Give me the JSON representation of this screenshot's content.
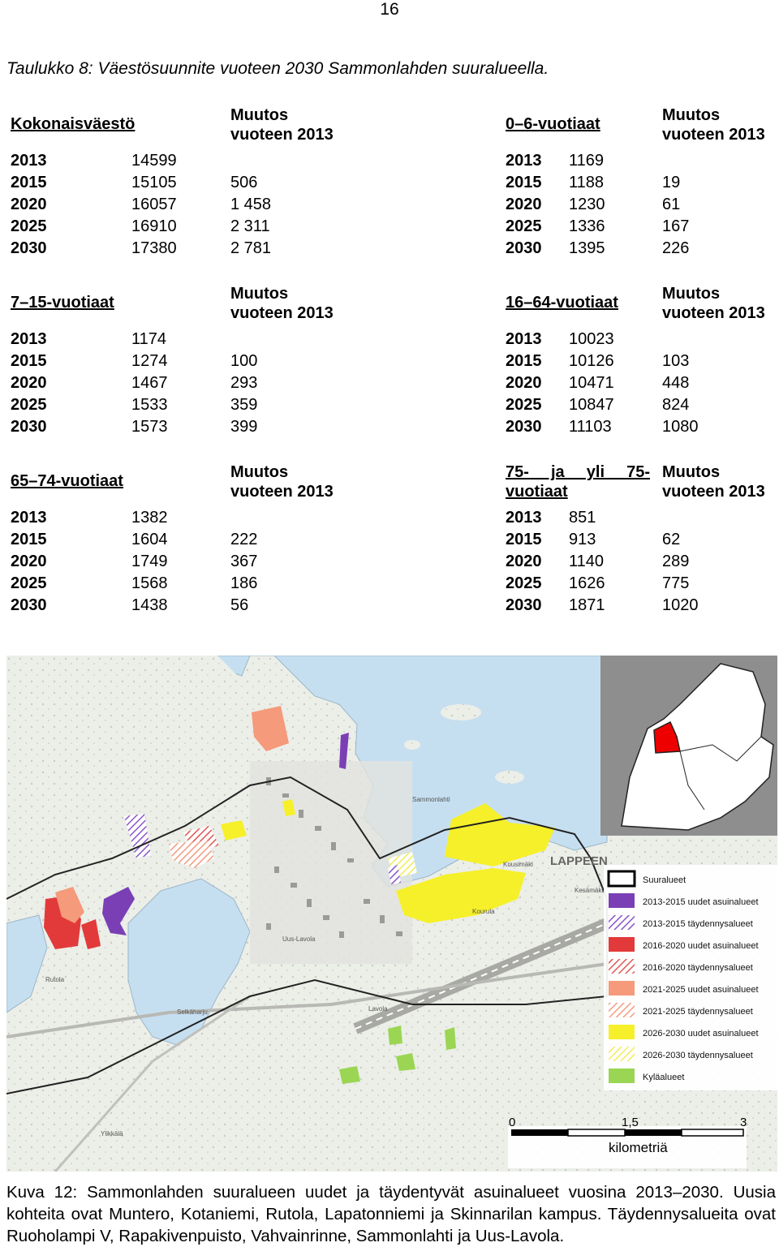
{
  "page_number": "16",
  "table_caption": "Taulukko 8: Väestösuunnite vuoteen 2030 Sammonlahden suuralueella.",
  "change_header_line1": "Muutos",
  "change_header_line2": "vuoteen 2013",
  "groups": [
    {
      "title": "Kokonaisväestö",
      "rows": [
        {
          "year": "2013",
          "value": "14599",
          "change": ""
        },
        {
          "year": "2015",
          "value": "15105",
          "change": "506"
        },
        {
          "year": "2020",
          "value": "16057",
          "change": "1 458"
        },
        {
          "year": "2025",
          "value": "16910",
          "change": "2 311"
        },
        {
          "year": "2030",
          "value": "17380",
          "change": "2 781"
        }
      ]
    },
    {
      "title": "0–6-vuotiaat",
      "rows": [
        {
          "year": "2013",
          "value": "1169",
          "change": ""
        },
        {
          "year": "2015",
          "value": "1188",
          "change": "19"
        },
        {
          "year": "2020",
          "value": "1230",
          "change": "61"
        },
        {
          "year": "2025",
          "value": "1336",
          "change": "167"
        },
        {
          "year": "2030",
          "value": "1395",
          "change": "226"
        }
      ]
    },
    {
      "title": "7–15-vuotiaat",
      "rows": [
        {
          "year": "2013",
          "value": "1174",
          "change": ""
        },
        {
          "year": "2015",
          "value": "1274",
          "change": "100"
        },
        {
          "year": "2020",
          "value": "1467",
          "change": "293"
        },
        {
          "year": "2025",
          "value": "1533",
          "change": "359"
        },
        {
          "year": "2030",
          "value": "1573",
          "change": "399"
        }
      ]
    },
    {
      "title": "16–64-vuotiaat",
      "rows": [
        {
          "year": "2013",
          "value": "10023",
          "change": ""
        },
        {
          "year": "2015",
          "value": "10126",
          "change": "103"
        },
        {
          "year": "2020",
          "value": "10471",
          "change": "448"
        },
        {
          "year": "2025",
          "value": "10847",
          "change": "824"
        },
        {
          "year": "2030",
          "value": "11103",
          "change": "1080"
        }
      ]
    },
    {
      "title": "65–74-vuotiaat",
      "rows": [
        {
          "year": "2013",
          "value": "1382",
          "change": ""
        },
        {
          "year": "2015",
          "value": "1604",
          "change": "222"
        },
        {
          "year": "2020",
          "value": "1749",
          "change": "367"
        },
        {
          "year": "2025",
          "value": "1568",
          "change": "186"
        },
        {
          "year": "2030",
          "value": "1438",
          "change": "56"
        }
      ]
    },
    {
      "title_line1": "75- ja yli 75-",
      "title_line2": "vuotiaat",
      "rows": [
        {
          "year": "2013",
          "value": "851",
          "change": ""
        },
        {
          "year": "2015",
          "value": "913",
          "change": "62"
        },
        {
          "year": "2020",
          "value": "1140",
          "change": "289"
        },
        {
          "year": "2025",
          "value": "1626",
          "change": "775"
        },
        {
          "year": "2030",
          "value": "1871",
          "change": "1020"
        }
      ]
    }
  ],
  "map": {
    "place_labels": [
      "LAPPEEN",
      "Kuusimäki",
      "Kesämäki",
      "Kourula",
      "Rutola",
      "Lavola",
      "Ylikkälä",
      "Selkäharju",
      "Uus-Lavola",
      "Sammonlahti"
    ],
    "legend": [
      {
        "label": "Suuralueet",
        "color": "#ffffff"
      },
      {
        "label": "2013-2015 uudet asuinalueet",
        "color": "#7a3fb5"
      },
      {
        "label": "2013-2015 täydennysalueet",
        "color": "#a77ad4"
      },
      {
        "label": "2016-2020 uudet asuinalueet",
        "color": "#e23a3a"
      },
      {
        "label": "2016-2020 täydennysalueet",
        "color": "#e87070"
      },
      {
        "label": "2021-2025 uudet asuinalueet",
        "color": "#f59a7a"
      },
      {
        "label": "2021-2025 täydennysalueet",
        "color": "#f7b9a0"
      },
      {
        "label": "2026-2030 uudet asuinalueet",
        "color": "#f6f02a"
      },
      {
        "label": "2026-2030 täydennysalueet",
        "color": "#f5f07a"
      },
      {
        "label": "Kyläalueet",
        "color": "#9ad653"
      }
    ],
    "scale_labels": [
      "0",
      "1,5",
      "3"
    ],
    "scale_unit": "kilometriä",
    "water_color": "#c6dff0",
    "land_color": "#f2f2ee"
  },
  "figure_caption": "Kuva 12: Sammonlahden suuralueen uudet ja täydentyvät asuinalueet vuosina 2013–2030. Uusia kohteita ovat Muntero, Kotaniemi, Rutola, Lapatonniemi ja Skinnarilan kampus. Täydennysalueita ovat Ruoholampi V, Rapakivenpuisto, Vahvainrinne, Sammonlahti ja Uus-Lavola."
}
